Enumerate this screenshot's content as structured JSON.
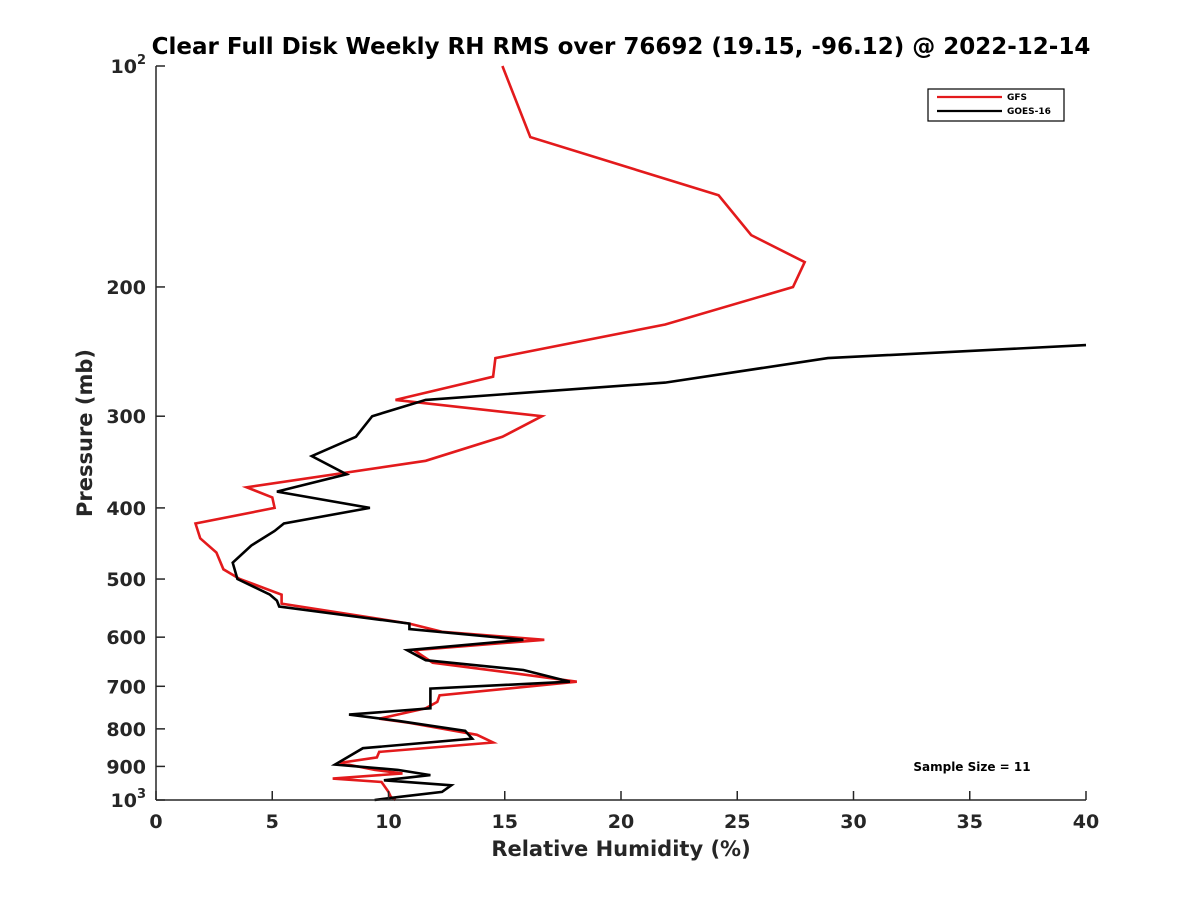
{
  "chart_data": {
    "type": "line",
    "title": "Clear Full Disk Weekly RH RMS over 76692 (19.15, -96.12) @ 2022-12-14",
    "xlabel": "Relative Humidity (%)",
    "ylabel": "Pressure (mb)",
    "xlim": [
      0,
      40
    ],
    "ylim": [
      100,
      1000
    ],
    "yscale": "log",
    "y_reversed": true,
    "grid": false,
    "x_ticks": [
      0,
      5,
      10,
      15,
      20,
      25,
      30,
      35,
      40
    ],
    "x_tick_labels": [
      "0",
      "5",
      "10",
      "15",
      "20",
      "25",
      "30",
      "35",
      "40"
    ],
    "y_ticks": [
      100,
      200,
      300,
      400,
      500,
      600,
      700,
      800,
      900,
      1000
    ],
    "y_tick_labels": [
      {
        "base": "10",
        "exp": "2"
      },
      {
        "base": "200",
        "exp": ""
      },
      {
        "base": "300",
        "exp": ""
      },
      {
        "base": "400",
        "exp": ""
      },
      {
        "base": "500",
        "exp": ""
      },
      {
        "base": "600",
        "exp": ""
      },
      {
        "base": "700",
        "exp": ""
      },
      {
        "base": "800",
        "exp": ""
      },
      {
        "base": "900",
        "exp": ""
      },
      {
        "base": "10",
        "exp": "3"
      }
    ],
    "legend_position": "top-right",
    "annotation": "Sample Size = 11",
    "series": [
      {
        "name": "GFS",
        "color": "#e31a1c",
        "points": [
          [
            14.9,
            100
          ],
          [
            16.1,
            125
          ],
          [
            24.2,
            150
          ],
          [
            25.6,
            170
          ],
          [
            27.9,
            185
          ],
          [
            27.4,
            200
          ],
          [
            21.9,
            225
          ],
          [
            14.6,
            250
          ],
          [
            14.5,
            265
          ],
          [
            10.3,
            285
          ],
          [
            16.6,
            300
          ],
          [
            14.9,
            320
          ],
          [
            11.6,
            345
          ],
          [
            3.9,
            375
          ],
          [
            5.0,
            387
          ],
          [
            5.1,
            400
          ],
          [
            1.7,
            420
          ],
          [
            1.9,
            440
          ],
          [
            2.6,
            460
          ],
          [
            2.9,
            485
          ],
          [
            3.6,
            500
          ],
          [
            5.4,
            525
          ],
          [
            5.4,
            540
          ],
          [
            10.9,
            575
          ],
          [
            12.3,
            590
          ],
          [
            16.7,
            605
          ],
          [
            11.1,
            625
          ],
          [
            11.9,
            650
          ],
          [
            15.1,
            670
          ],
          [
            18.1,
            690
          ],
          [
            12.2,
            720
          ],
          [
            12.1,
            735
          ],
          [
            11.6,
            750
          ],
          [
            9.6,
            775
          ],
          [
            10.9,
            785
          ],
          [
            13.8,
            815
          ],
          [
            14.5,
            835
          ],
          [
            9.6,
            860
          ],
          [
            9.5,
            875
          ],
          [
            7.9,
            890
          ],
          [
            9.4,
            910
          ],
          [
            10.6,
            920
          ],
          [
            7.6,
            935
          ],
          [
            9.7,
            945
          ],
          [
            10.0,
            975
          ],
          [
            10.1,
            990
          ],
          [
            10.3,
            1000
          ]
        ]
      },
      {
        "name": "GOES-16",
        "color": "#000000",
        "points": [
          [
            40.0,
            240
          ],
          [
            28.9,
            250
          ],
          [
            21.9,
            270
          ],
          [
            11.6,
            285
          ],
          [
            9.3,
            300
          ],
          [
            8.6,
            320
          ],
          [
            6.7,
            340
          ],
          [
            8.2,
            360
          ],
          [
            5.2,
            380
          ],
          [
            9.2,
            400
          ],
          [
            5.5,
            420
          ],
          [
            5.1,
            430
          ],
          [
            4.1,
            450
          ],
          [
            3.3,
            475
          ],
          [
            3.5,
            500
          ],
          [
            4.9,
            525
          ],
          [
            5.2,
            535
          ],
          [
            5.3,
            545
          ],
          [
            10.9,
            575
          ],
          [
            10.9,
            585
          ],
          [
            15.8,
            605
          ],
          [
            10.8,
            625
          ],
          [
            11.6,
            645
          ],
          [
            15.8,
            665
          ],
          [
            17.8,
            690
          ],
          [
            11.8,
            705
          ],
          [
            11.8,
            735
          ],
          [
            11.8,
            750
          ],
          [
            8.3,
            765
          ],
          [
            10.4,
            780
          ],
          [
            13.3,
            805
          ],
          [
            13.6,
            825
          ],
          [
            8.9,
            850
          ],
          [
            7.7,
            895
          ],
          [
            10.4,
            910
          ],
          [
            11.8,
            925
          ],
          [
            9.8,
            940
          ],
          [
            12.7,
            955
          ],
          [
            12.3,
            975
          ],
          [
            10.5,
            990
          ],
          [
            9.4,
            1000
          ]
        ]
      }
    ]
  }
}
